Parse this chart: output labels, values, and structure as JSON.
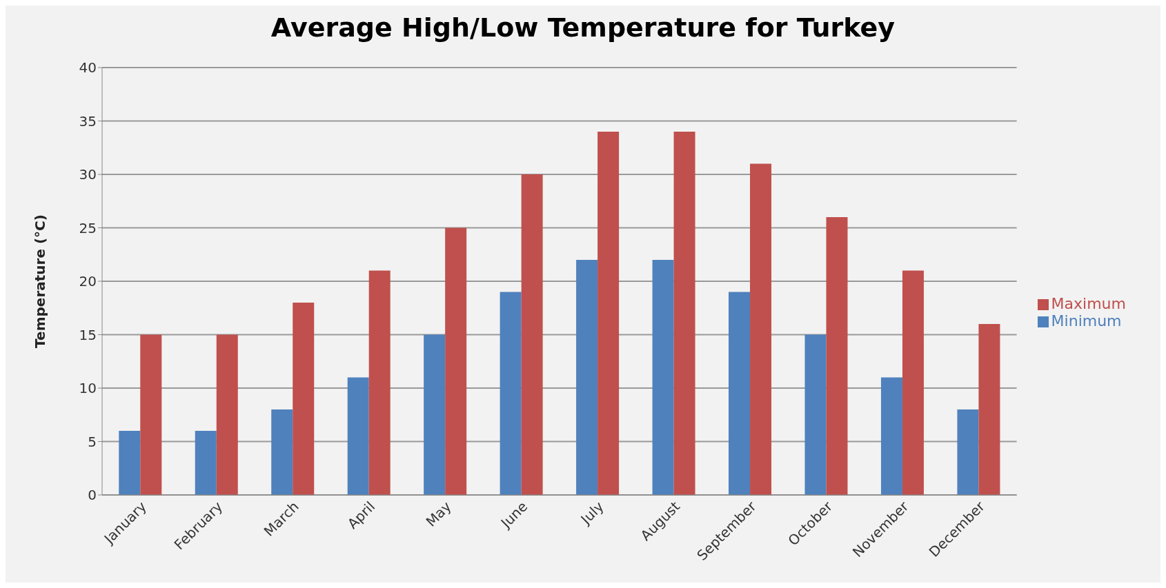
{
  "chart_data": {
    "type": "bar",
    "title": "Average High/Low Temperature for Turkey",
    "ylabel": "Temperature (°C)",
    "categories": [
      "January",
      "February",
      "March",
      "April",
      "May",
      "June",
      "July",
      "August",
      "September",
      "October",
      "November",
      "December"
    ],
    "series": [
      {
        "name": "Minimum",
        "color": "#4f81bd",
        "values": [
          6,
          6,
          8,
          11,
          15,
          19,
          22,
          22,
          19,
          15,
          11,
          8
        ]
      },
      {
        "name": "Maximum",
        "color": "#c0504d",
        "values": [
          15,
          15,
          18,
          21,
          25,
          30,
          34,
          34,
          31,
          26,
          21,
          16
        ]
      }
    ],
    "ylim": [
      0,
      40
    ],
    "yticks": [
      0,
      5,
      10,
      15,
      20,
      25,
      30,
      35,
      40
    ],
    "grid": "y",
    "legend": "right"
  }
}
